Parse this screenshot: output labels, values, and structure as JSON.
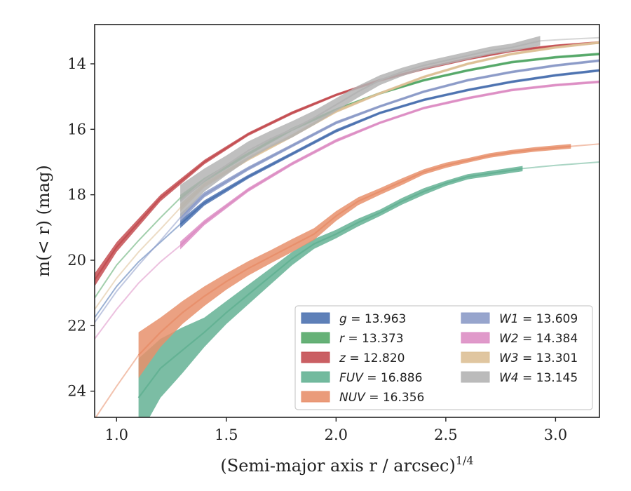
{
  "chart_data": {
    "type": "line",
    "xlabel": "(Semi-major axis r / arcsec)",
    "xlabel_superscript": "1/4",
    "ylabel": "m(< r) (mag)",
    "xlim": [
      0.9,
      3.2
    ],
    "ylim": [
      24.8,
      12.8
    ],
    "y_inverted": true,
    "grid": false,
    "legend_position": "lower-right",
    "xticks": [
      "1.0",
      "1.5",
      "2.0",
      "2.5",
      "3.0"
    ],
    "yticks": [
      "14",
      "16",
      "18",
      "20",
      "22",
      "24"
    ],
    "series": [
      {
        "name": "g = 13.963",
        "label_var": "g",
        "label_val": "13.963",
        "color": "#4c72b0",
        "x": [
          1.29,
          1.4,
          1.6,
          1.8,
          2.0,
          2.2,
          2.4,
          2.6,
          2.8,
          3.0,
          3.2
        ],
        "y": [
          18.9,
          18.25,
          17.45,
          16.75,
          16.05,
          15.5,
          15.1,
          14.8,
          14.55,
          14.35,
          14.2
        ],
        "band": [
          0.12,
          0.08,
          0.06,
          0.05,
          0.05,
          0.04,
          0.04,
          0.04,
          0.04,
          0.04,
          0.04
        ],
        "ext_x": [
          0.9,
          1.0,
          1.1,
          1.2,
          1.29
        ],
        "ext_y": [
          21.75,
          20.8,
          20.05,
          19.45,
          18.9
        ]
      },
      {
        "name": "r = 13.373",
        "label_var": "r",
        "label_val": "13.373",
        "color": "#55a868",
        "x": [
          1.29,
          1.4,
          1.6,
          1.8,
          2.0,
          2.2,
          2.4,
          2.6,
          2.8,
          3.0,
          3.2
        ],
        "y": [
          18.1,
          17.55,
          16.75,
          16.0,
          15.4,
          14.9,
          14.5,
          14.2,
          13.95,
          13.8,
          13.7
        ],
        "band": [
          0.1,
          0.07,
          0.05,
          0.05,
          0.04,
          0.04,
          0.04,
          0.04,
          0.04,
          0.04,
          0.04
        ],
        "ext_x": [
          0.9,
          1.0,
          1.1,
          1.2,
          1.29
        ],
        "ext_y": [
          21.15,
          20.15,
          19.4,
          18.7,
          18.1
        ]
      },
      {
        "name": "z = 12.820",
        "label_var": "z",
        "label_val": "12.820",
        "color": "#c44e52",
        "x": [
          0.9,
          1.0,
          1.2,
          1.4,
          1.6,
          1.8,
          2.0,
          2.2,
          2.4,
          2.6,
          2.8,
          3.0,
          3.2
        ],
        "y": [
          20.6,
          19.6,
          18.1,
          17.0,
          16.15,
          15.5,
          14.95,
          14.5,
          14.15,
          13.85,
          13.6,
          13.45,
          13.35
        ],
        "band": [
          0.2,
          0.15,
          0.1,
          0.07,
          0.05,
          0.05,
          0.04,
          0.04,
          0.04,
          0.04,
          0.04,
          0.04,
          0.04
        ],
        "ext_x": [],
        "ext_y": []
      },
      {
        "name": "FUV = 16.886",
        "label_var": "FUV",
        "label_val": "16.886",
        "color": "#64b294",
        "x": [
          1.1,
          1.2,
          1.3,
          1.4,
          1.5,
          1.6,
          1.7,
          1.8,
          1.9,
          2.0,
          2.1,
          2.2,
          2.3,
          2.4,
          2.5,
          2.6,
          2.7,
          2.85
        ],
        "y": [
          24.2,
          23.3,
          22.75,
          22.2,
          21.6,
          21.05,
          20.5,
          19.95,
          19.5,
          19.2,
          18.85,
          18.55,
          18.2,
          17.9,
          17.65,
          17.45,
          17.35,
          17.2
        ],
        "band": [
          1.2,
          0.9,
          0.7,
          0.45,
          0.35,
          0.3,
          0.25,
          0.2,
          0.15,
          0.13,
          0.12,
          0.1,
          0.1,
          0.1,
          0.08,
          0.08,
          0.08,
          0.08
        ],
        "ext_x": [
          2.85,
          3.0,
          3.2
        ],
        "ext_y": [
          17.2,
          17.1,
          17.0
        ]
      },
      {
        "name": "NUV = 16.356",
        "label_var": "NUV",
        "label_val": "16.356",
        "color": "#e8906c",
        "x": [
          1.1,
          1.2,
          1.3,
          1.4,
          1.5,
          1.6,
          1.7,
          1.8,
          1.9,
          2.0,
          2.1,
          2.2,
          2.3,
          2.4,
          2.5,
          2.6,
          2.7,
          2.8,
          2.9,
          3.07
        ],
        "y": [
          22.9,
          22.2,
          21.6,
          21.1,
          20.65,
          20.25,
          19.9,
          19.55,
          19.2,
          18.65,
          18.2,
          17.9,
          17.6,
          17.3,
          17.1,
          16.95,
          16.8,
          16.7,
          16.62,
          16.52
        ],
        "band": [
          0.7,
          0.45,
          0.35,
          0.3,
          0.25,
          0.22,
          0.2,
          0.2,
          0.18,
          0.15,
          0.12,
          0.1,
          0.1,
          0.08,
          0.08,
          0.07,
          0.07,
          0.07,
          0.07,
          0.07
        ],
        "ext_x": [
          0.9,
          1.0,
          1.1
        ],
        "ext_y": [
          24.85,
          23.85,
          22.9
        ],
        "ext2_x": [
          3.07,
          3.2
        ],
        "ext2_y": [
          16.52,
          16.45
        ]
      },
      {
        "name": "W1 = 13.609",
        "label_var": "W1",
        "label_val": "13.609",
        "color": "#8c9bc8",
        "x": [
          1.29,
          1.4,
          1.6,
          1.8,
          2.0,
          2.2,
          2.4,
          2.6,
          2.8,
          3.0,
          3.2
        ],
        "y": [
          18.7,
          18.0,
          17.2,
          16.5,
          15.8,
          15.3,
          14.85,
          14.5,
          14.25,
          14.05,
          13.9
        ],
        "band": [
          0.12,
          0.08,
          0.06,
          0.05,
          0.05,
          0.04,
          0.04,
          0.04,
          0.04,
          0.04,
          0.04
        ],
        "ext_x": [
          0.9,
          1.0,
          1.1,
          1.2,
          1.29
        ],
        "ext_y": [
          21.9,
          20.95,
          20.15,
          19.4,
          18.7
        ]
      },
      {
        "name": "W2 = 14.384",
        "label_var": "W2",
        "label_val": "14.384",
        "color": "#dd8ec4",
        "x": [
          1.29,
          1.4,
          1.6,
          1.8,
          2.0,
          2.2,
          2.4,
          2.6,
          2.8,
          3.0,
          3.2
        ],
        "y": [
          19.55,
          18.85,
          17.85,
          17.05,
          16.35,
          15.8,
          15.35,
          15.05,
          14.8,
          14.65,
          14.55
        ],
        "band": [
          0.12,
          0.08,
          0.06,
          0.05,
          0.05,
          0.04,
          0.04,
          0.04,
          0.04,
          0.04,
          0.04
        ],
        "ext_x": [
          0.9,
          1.0,
          1.1,
          1.2,
          1.29
        ],
        "ext_y": [
          22.4,
          21.5,
          20.7,
          20.05,
          19.55
        ]
      },
      {
        "name": "W3 = 13.301",
        "label_var": "W3",
        "label_val": "13.301",
        "color": "#ddc096",
        "x": [
          1.29,
          1.4,
          1.6,
          1.8,
          2.0,
          2.2,
          2.4,
          2.6,
          2.8,
          3.0,
          3.2
        ],
        "y": [
          18.4,
          17.7,
          16.9,
          16.2,
          15.45,
          14.9,
          14.4,
          14.0,
          13.7,
          13.5,
          13.35
        ],
        "band": [
          0.12,
          0.08,
          0.06,
          0.05,
          0.05,
          0.04,
          0.04,
          0.04,
          0.04,
          0.04,
          0.04
        ],
        "ext_x": [
          0.9,
          1.0,
          1.1,
          1.2,
          1.29
        ],
        "ext_y": [
          21.5,
          20.55,
          19.75,
          19.05,
          18.4
        ]
      },
      {
        "name": "W4 = 13.145",
        "label_var": "W4",
        "label_val": "13.145",
        "color": "#b4b4b4",
        "x": [
          1.29,
          1.4,
          1.5,
          1.6,
          1.7,
          1.8,
          1.9,
          2.0,
          2.1,
          2.2,
          2.3,
          2.4,
          2.5,
          2.6,
          2.7,
          2.8,
          2.93
        ],
        "y": [
          18.2,
          17.55,
          17.1,
          16.65,
          16.3,
          16.0,
          15.65,
          15.25,
          14.85,
          14.5,
          14.25,
          14.05,
          13.9,
          13.75,
          13.6,
          13.5,
          13.3
        ],
        "band": [
          0.5,
          0.35,
          0.3,
          0.28,
          0.25,
          0.25,
          0.22,
          0.2,
          0.18,
          0.15,
          0.13,
          0.12,
          0.12,
          0.12,
          0.12,
          0.12,
          0.15
        ],
        "ext_x": [
          2.93,
          3.05,
          3.2
        ],
        "ext_y": [
          13.3,
          13.25,
          13.2
        ]
      }
    ]
  }
}
